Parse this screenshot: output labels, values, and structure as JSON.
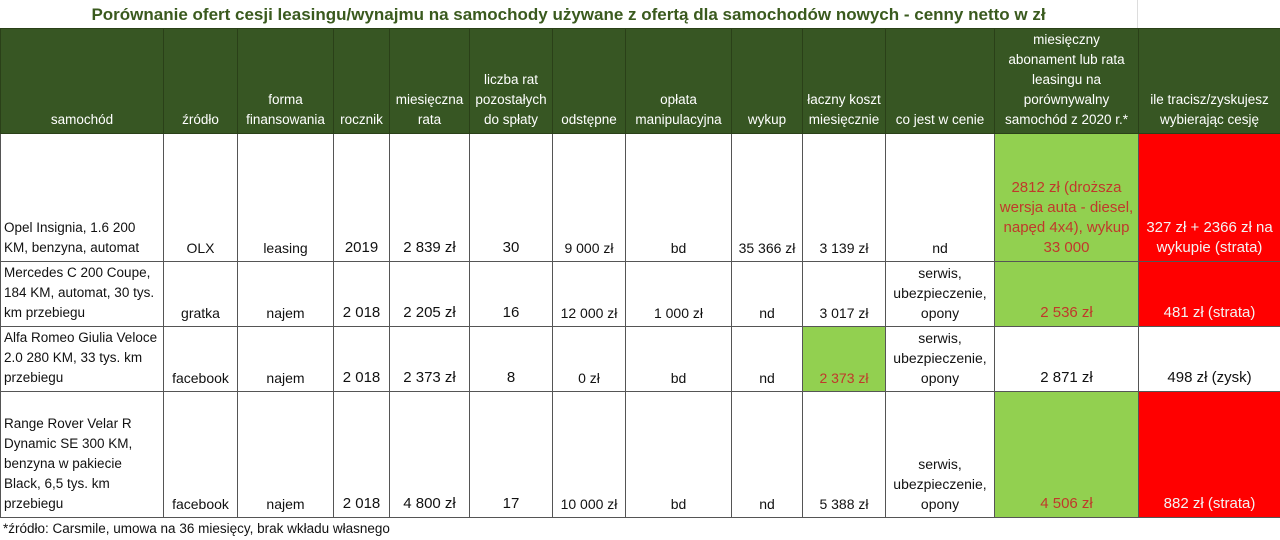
{
  "title": "Porównanie ofert cesji leasingu/wynajmu na samochody używane z ofertą dla samochodów nowych - cenny netto w zł",
  "columns": [
    "samochód",
    "źródło",
    "forma finansowania",
    "rocznik",
    "miesięczna rata",
    "liczba rat pozostałych do spłaty",
    "odstępne",
    "opłata manipulacyjna",
    "wykup",
    "łaczny koszt miesięcznie",
    "co jest w cenie",
    "miesięczny abonament lub rata leasingu na porównywalny samochód z 2020 r.*",
    "ile tracisz/zyskujesz wybierając cesję"
  ],
  "rows": [
    {
      "car": "Opel Insignia, 1.6 200 KM, benzyna, automat",
      "source": "OLX",
      "financing": "leasing",
      "year": "2019",
      "monthly": "2 839 zł",
      "remaining": "30",
      "fee": "9 000 zł",
      "handling": "bd",
      "buyout": "35 366 zł",
      "total": "3 139 zł",
      "included": "nd",
      "new_car": "2812 zł (droższa wersja auta - diesel, napęd 4x4), wykup 33 000",
      "diff": "327 zł + 2366 zł na wykupie (strata)"
    },
    {
      "car": "Mercedes C 200 Coupe, 184 KM, automat, 30 tys. km przebiegu",
      "source": "gratka",
      "financing": "najem",
      "year": "2 018",
      "monthly": "2 205 zł",
      "remaining": "16",
      "fee": "12 000 zł",
      "handling": "1 000 zł",
      "buyout": "nd",
      "total": "3 017 zł",
      "included": "serwis, ubezpieczenie, opony",
      "new_car": "2 536 zł",
      "diff": "481 zł (strata)"
    },
    {
      "car": "Alfa Romeo Giulia Veloce 2.0 280 KM, 33 tys. km przebiegu",
      "source": "facebook",
      "financing": "najem",
      "year": "2 018",
      "monthly": "2 373 zł",
      "remaining": "8",
      "fee": "0 zł",
      "handling": "bd",
      "buyout": "nd",
      "total": "2 373 zł",
      "included": "serwis, ubezpieczenie, opony",
      "new_car": "2 871 zł",
      "diff": "498 zł (zysk)"
    },
    {
      "car": "Range Rover Velar R Dynamic SE 300 KM, benzyna w pakiecie Black, 6,5 tys. km przebiegu",
      "source": "facebook",
      "financing": "najem",
      "year": "2 018",
      "monthly": "4 800 zł",
      "remaining": "17",
      "fee": "10 000 zł",
      "handling": "bd",
      "buyout": "nd",
      "total": "5 388 zł",
      "included": "serwis, ubezpieczenie, opony",
      "new_car": "4 506 zł",
      "diff": "882 zł (strata)"
    }
  ],
  "footnote": "*źródło: Carsmile, umowa na 36 miesięcy, brak wkładu własnego",
  "colors": {
    "header": "#375623",
    "highlight_green": "#92d050",
    "highlight_red": "#ff0000",
    "title": "#3a5a1e"
  }
}
